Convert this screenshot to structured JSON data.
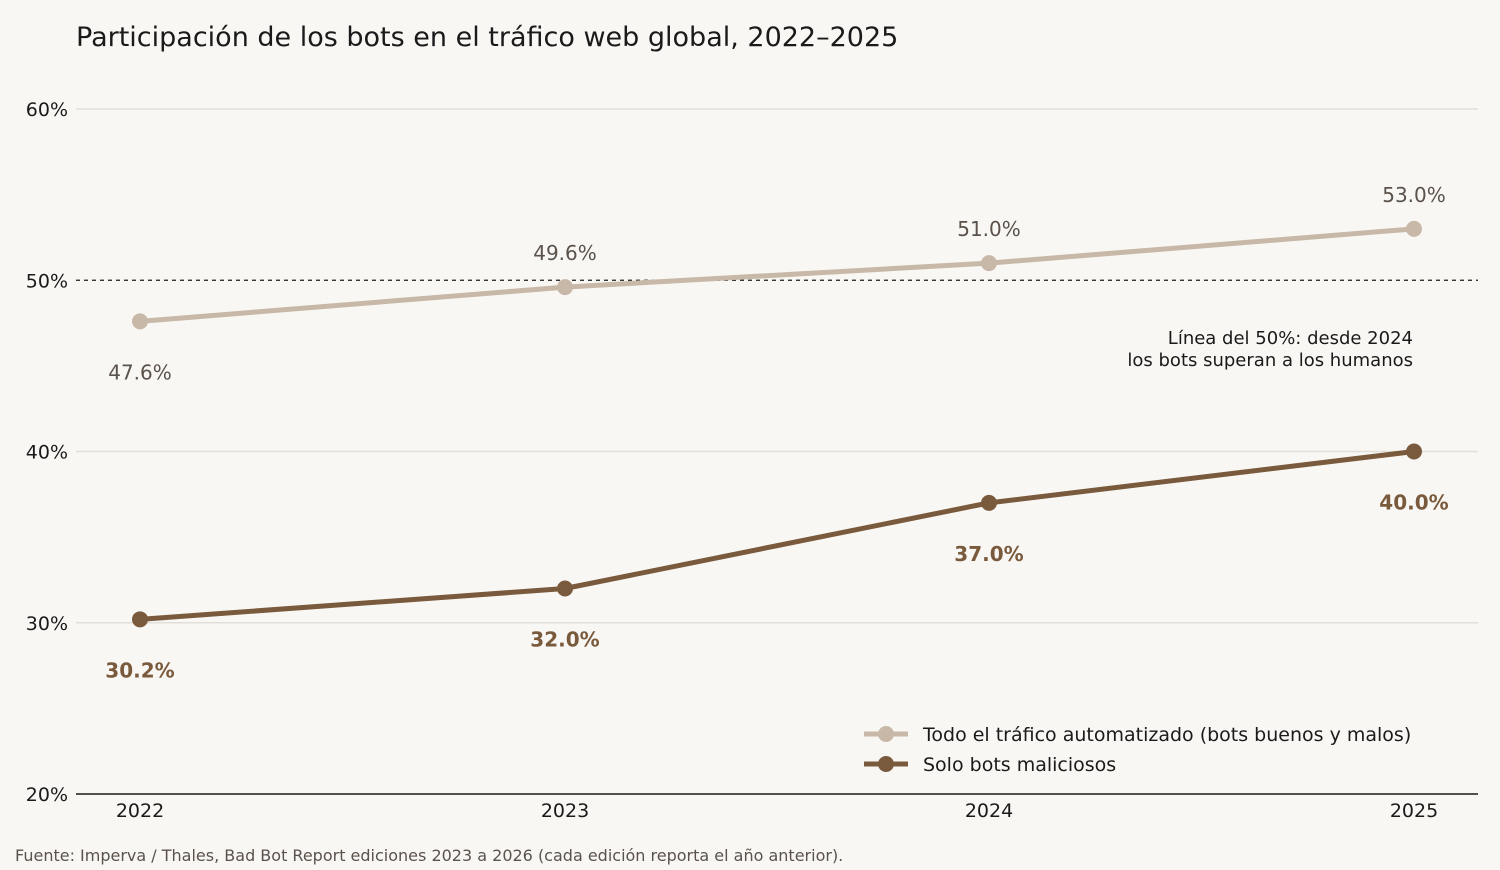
{
  "chart_data": {
    "type": "line",
    "title": "Participación de los bots en el tráfico web global, 2022–2025",
    "categories": [
      "2022",
      "2023",
      "2024",
      "2025"
    ],
    "ylim": [
      20,
      60
    ],
    "y_ticks": [
      20,
      30,
      40,
      50,
      60
    ],
    "y_tick_labels": [
      "20%",
      "30%",
      "40%",
      "50%",
      "60%"
    ],
    "grid": true,
    "reference_line": {
      "value": 50,
      "style": "dashed",
      "annotation_lines": [
        "Línea del 50%: desde 2024",
        "los bots superan a los humanos"
      ]
    },
    "series": [
      {
        "name": "Todo el tráfico automatizado (bots buenos y malos)",
        "values": [
          47.6,
          49.6,
          51.0,
          53.0
        ],
        "data_labels": [
          "47.6%",
          "49.6%",
          "51.0%",
          "53.0%"
        ],
        "label_positions": [
          "below",
          "above",
          "above",
          "above"
        ],
        "color": "#c8b8a8"
      },
      {
        "name": "Solo bots maliciosos",
        "values": [
          30.2,
          32.0,
          37.0,
          40.0
        ],
        "data_labels": [
          "30.2%",
          "32.0%",
          "37.0%",
          "40.0%"
        ],
        "label_positions": [
          "below",
          "below",
          "below",
          "below"
        ],
        "color": "#7a5a3c"
      }
    ],
    "legend_position": "bottom-right",
    "source": "Fuente: Imperva / Thales, Bad Bot Report ediciones 2023 a 2026 (cada edición reporta el año anterior)."
  }
}
